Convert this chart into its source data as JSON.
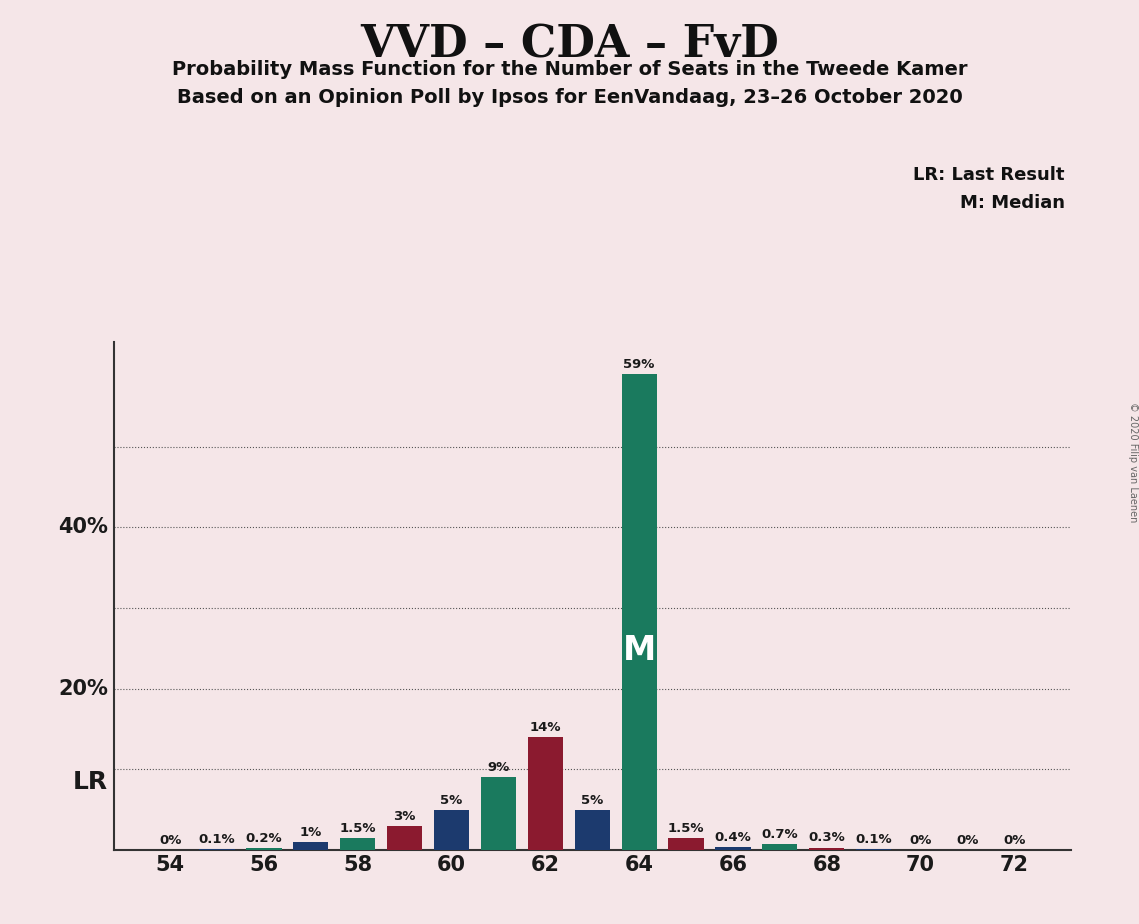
{
  "title": "VVD – CDA – FvD",
  "subtitle1": "Probability Mass Function for the Number of Seats in the Tweede Kamer",
  "subtitle2": "Based on an Opinion Poll by Ipsos for EenVandaag, 23–26 October 2020",
  "copyright": "© 2020 Filip van Laenen",
  "legend_lr": "LR: Last Result",
  "legend_m": "M: Median",
  "background_color": "#f5e6e8",
  "seats": [
    54,
    55,
    56,
    57,
    58,
    59,
    60,
    61,
    62,
    63,
    64,
    65,
    66,
    67,
    68,
    69,
    70,
    71,
    72
  ],
  "values": [
    0.0,
    0.1,
    0.2,
    1.0,
    1.5,
    3.0,
    5.0,
    9.0,
    14.0,
    5.0,
    59.0,
    1.5,
    0.4,
    0.7,
    0.3,
    0.1,
    0.0,
    0.0,
    0.0
  ],
  "bar_colors": [
    "#8B1A2F",
    "#1C3A6E",
    "#1A7A5E",
    "#1C3A6E",
    "#1A7A5E",
    "#8B1A2F",
    "#1C3A6E",
    "#1A7A5E",
    "#8B1A2F",
    "#1C3A6E",
    "#1A7A5E",
    "#8B1A2F",
    "#1C3A6E",
    "#1A7A5E",
    "#8B1A2F",
    "#1C3A6E",
    "#1A7A5E",
    "#8B1A2F",
    "#1C3A6E"
  ],
  "median_seat": 64,
  "lr_seat": 61,
  "ylim": [
    0,
    63
  ],
  "bar_width": 0.75,
  "label_fontsize": 9.5,
  "tick_fontsize": 15,
  "title_fontsize": 32,
  "subtitle_fontsize": 14,
  "legend_fontsize": 13
}
